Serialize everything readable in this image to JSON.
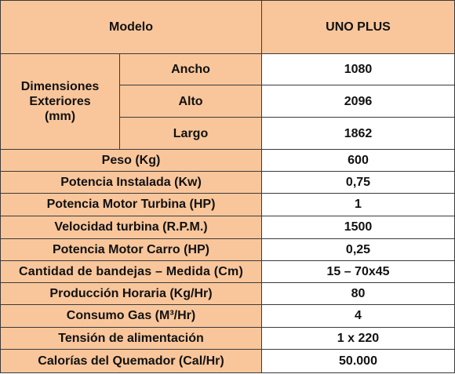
{
  "header": {
    "model_label": "Modelo",
    "model_value": "UNO PLUS"
  },
  "dimensions": {
    "group_label_line1": "Dimensiones",
    "group_label_line2": "Exteriores",
    "group_label_line3": "(mm)",
    "rows": [
      {
        "label": "Ancho",
        "value": "1080"
      },
      {
        "label": "Alto",
        "value": "2096"
      },
      {
        "label": "Largo",
        "value": "1862"
      }
    ]
  },
  "specs": [
    {
      "label": "Peso (Kg)",
      "value": "600"
    },
    {
      "label": "Potencia Instalada (Kw)",
      "value": "0,75"
    },
    {
      "label": "Potencia Motor Turbina (HP)",
      "value": "1"
    },
    {
      "label": "Velocidad turbina (R.P.M.)",
      "value": "1500"
    },
    {
      "label": "Potencia Motor Carro (HP)",
      "value": "0,25"
    },
    {
      "label": "Cantidad de bandejas  – Medida (Cm)",
      "value": "15 – 70x45"
    },
    {
      "label": "Producción Horaria (Kg/Hr)",
      "value": "80"
    },
    {
      "label": "Consumo Gas (M³/Hr)",
      "value": "4"
    },
    {
      "label": "Tensión de alimentación",
      "value": "1 x 220"
    },
    {
      "label": "Calorías del Quemador (Cal/Hr)",
      "value": "50.000"
    }
  ],
  "colors": {
    "label_background": "#f9c69b",
    "value_background": "#ffffff",
    "border": "#3a3a3a"
  }
}
